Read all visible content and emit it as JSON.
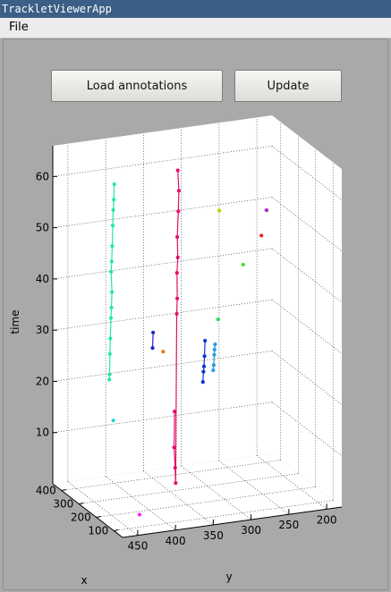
{
  "window": {
    "title": "TrackletViewerApp"
  },
  "menu": {
    "file": "File"
  },
  "buttons": {
    "load": "Load annotations",
    "update": "Update"
  },
  "chart_data": {
    "type": "scatter",
    "projection": "3d",
    "xlabel": "x",
    "ylabel": "y",
    "zlabel": "time",
    "xticks": [
      100,
      200,
      300,
      400
    ],
    "yticks": [
      450,
      400,
      350,
      300,
      250,
      200
    ],
    "zticks": [
      10,
      20,
      30,
      40,
      50,
      60
    ],
    "grid": true,
    "series": [
      {
        "color": "#e0106a",
        "values": [
          [
            20,
            17
          ],
          [
            18,
            10
          ],
          [
            22,
            6
          ],
          [
            24,
            3
          ],
          [
            28,
            36
          ],
          [
            30,
            39
          ],
          [
            29,
            44
          ],
          [
            32,
            47
          ],
          [
            30,
            51
          ],
          [
            34,
            56
          ],
          [
            36,
            60
          ],
          [
            32,
            64
          ]
        ]
      },
      {
        "color": "#22e8a6",
        "values": [
          [
            16,
            25
          ],
          [
            17,
            26
          ],
          [
            18,
            30
          ],
          [
            20,
            33
          ],
          [
            22,
            37
          ],
          [
            24,
            39
          ],
          [
            26,
            42
          ],
          [
            23,
            46
          ],
          [
            25,
            48
          ],
          [
            27,
            51
          ],
          [
            29,
            55
          ],
          [
            31,
            58
          ],
          [
            33,
            60
          ],
          [
            35,
            63
          ]
        ]
      },
      {
        "color": "#2222d2",
        "values": [
          [
            31,
            30
          ],
          [
            33,
            33
          ]
        ]
      },
      {
        "color": "#1032d8",
        "values": [
          [
            7,
            22
          ],
          [
            9,
            24
          ],
          [
            11,
            25
          ],
          [
            13,
            27
          ],
          [
            15,
            30
          ]
        ]
      },
      {
        "color": "#1e9ee8",
        "values": [
          [
            3,
            24
          ],
          [
            5,
            25
          ],
          [
            7,
            27
          ],
          [
            8,
            28
          ],
          [
            10,
            29
          ]
        ]
      },
      {
        "color": "#ff22ff",
        "values": [
          [
            64,
            4
          ]
        ]
      },
      {
        "color": "#c0c000",
        "values": [
          [
            60,
            60
          ]
        ]
      },
      {
        "color": "#aa22ee",
        "values": [
          [
            58,
            60
          ]
        ]
      },
      {
        "color": "#44dd22",
        "values": [
          [
            56,
            50
          ]
        ]
      },
      {
        "color": "#22dd55",
        "values": [
          [
            47,
            40
          ]
        ]
      },
      {
        "color": "#22d4d4",
        "values": [
          [
            31,
            20
          ]
        ]
      },
      {
        "color": "#ee7700",
        "values": [
          [
            28,
            29
          ]
        ]
      },
      {
        "color": "#ee2222",
        "values": [
          [
            28,
            49
          ]
        ]
      },
      {
        "color": "#aadd00",
        "values": [
          [
            12,
            55
          ]
        ]
      }
    ]
  }
}
